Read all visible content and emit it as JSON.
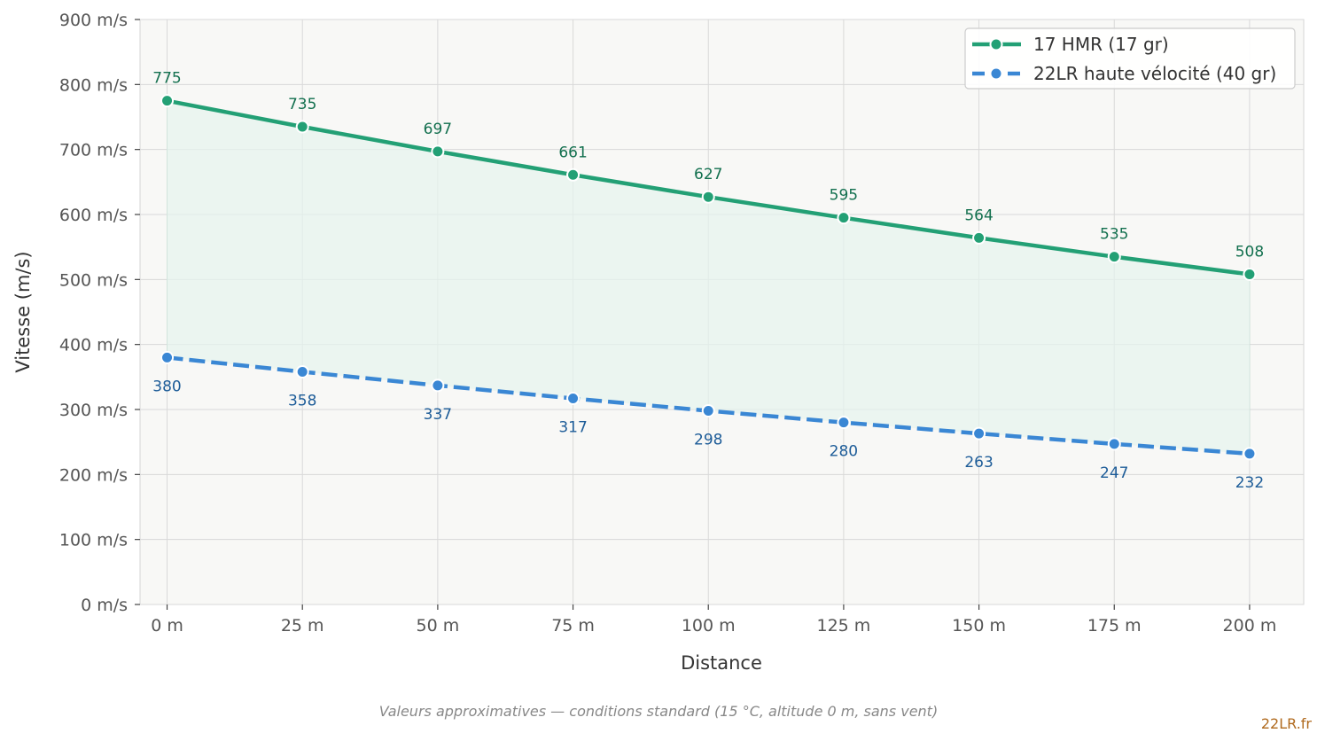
{
  "chart_data": {
    "type": "line",
    "x": [
      0,
      25,
      50,
      75,
      100,
      125,
      150,
      175,
      200
    ],
    "x_tick_labels": [
      "0 m",
      "25 m",
      "50 m",
      "75 m",
      "100 m",
      "125 m",
      "150 m",
      "175 m",
      "200 m"
    ],
    "y_ticks": [
      0,
      100,
      200,
      300,
      400,
      500,
      600,
      700,
      800,
      900
    ],
    "y_tick_labels": [
      "0 m/s",
      "100 m/s",
      "200 m/s",
      "300 m/s",
      "400 m/s",
      "500 m/s",
      "600 m/s",
      "700 m/s",
      "800 m/s",
      "900 m/s"
    ],
    "xlim": [
      -5,
      210
    ],
    "ylim": [
      0,
      900
    ],
    "xlabel": "Distance",
    "ylabel": "Vitesse (m/s)",
    "grid": true,
    "legend_position": "top-right",
    "fill_between_series": true,
    "series": [
      {
        "name": "17 HMR (17 gr)",
        "values": [
          775,
          735,
          697,
          661,
          627,
          595,
          564,
          535,
          508
        ],
        "labels": [
          "775",
          "735",
          "697",
          "661",
          "627",
          "595",
          "564",
          "535",
          "508"
        ],
        "color": "#23a075",
        "label_color": "#13704f",
        "line_style": "solid"
      },
      {
        "name": "22LR haute vélocité (40 gr)",
        "values": [
          380,
          358,
          337,
          317,
          298,
          280,
          263,
          247,
          232
        ],
        "labels": [
          "380",
          "358",
          "337",
          "317",
          "298",
          "280",
          "263",
          "247",
          "232"
        ],
        "color": "#3a87d4",
        "label_color": "#1d5c98",
        "line_style": "dashed"
      }
    ]
  },
  "footnote": "Valeurs approximatives — conditions standard (15 °C, altitude 0 m, sans vent)",
  "brand": "22LR.fr",
  "colors": {
    "plot_background": "#f8f8f6",
    "fill_between": "#e6f3ee",
    "grid": "#d9d9d9"
  }
}
